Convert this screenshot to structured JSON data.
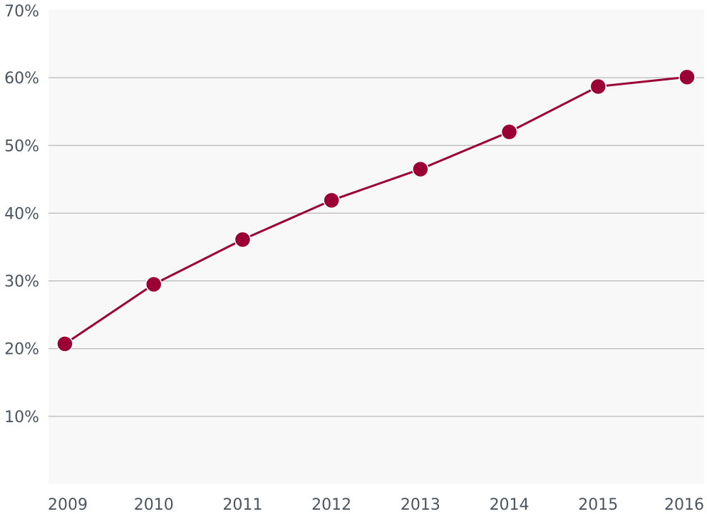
{
  "chart_data": {
    "type": "line",
    "title": "",
    "xlabel": "",
    "ylabel": "",
    "categories": [
      "2009",
      "2010",
      "2011",
      "2012",
      "2013",
      "2014",
      "2015",
      "2016"
    ],
    "values": [
      20.7,
      29.5,
      36.1,
      41.9,
      46.5,
      52.0,
      58.7,
      60.1
    ],
    "ylim": [
      0,
      70
    ],
    "y_ticks": [
      10,
      20,
      30,
      40,
      50,
      60,
      70
    ],
    "y_tick_labels": [
      "10%",
      "20%",
      "30%",
      "40%",
      "50%",
      "60%",
      "70%"
    ],
    "grid": true,
    "legend": "none",
    "colors": {
      "series": "#9b0035",
      "plot_background": "#f8f8f8",
      "grid": "#a9a9a9",
      "tick_text": "#4a5560"
    }
  }
}
